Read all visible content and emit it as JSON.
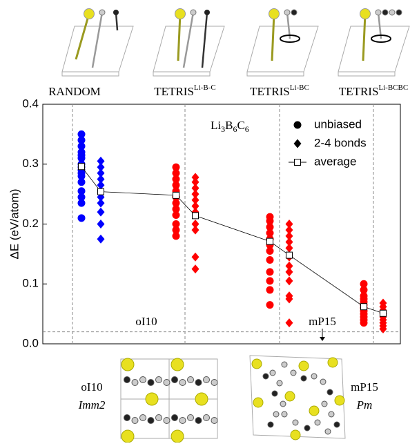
{
  "chart_data": {
    "type": "strip",
    "column_headers": [
      {
        "text": "RANDOM"
      },
      {
        "text": "TETRIS",
        "sup": "Li-B-C"
      },
      {
        "text": "TETRIS",
        "sup": "Li-BC"
      },
      {
        "text": "TETRIS",
        "sup": "Li-BCBC"
      }
    ],
    "compound": [
      "Li",
      "3",
      "B",
      "6",
      "C",
      "6"
    ],
    "ylabel": "ΔE (eV/atom)",
    "ylim": [
      0,
      0.4
    ],
    "yticks": [
      {
        "value": 0,
        "label": "0.0"
      },
      0.1,
      0.2,
      0.3,
      0.4
    ],
    "group_colors": [
      "#0000ff",
      "#ff0000",
      "#ff0000",
      "#ff0000"
    ],
    "series": [
      {
        "name": "unbiased",
        "marker": "circle",
        "color": "#000000",
        "values": [
          [
            0.35,
            0.34,
            0.33,
            0.32,
            0.315,
            0.31,
            0.3,
            0.295,
            0.29,
            0.285,
            0.28,
            0.27,
            0.255,
            0.245,
            0.235,
            0.21
          ],
          [
            0.295,
            0.285,
            0.275,
            0.265,
            0.255,
            0.245,
            0.235,
            0.225,
            0.215,
            0.2,
            0.19,
            0.18
          ],
          [
            0.212,
            0.205,
            0.195,
            0.185,
            0.175,
            0.165,
            0.155,
            0.14,
            0.12,
            0.105,
            0.09,
            0.065
          ],
          [
            0.1,
            0.09,
            0.08,
            0.075,
            0.07,
            0.065,
            0.06,
            0.055,
            0.05,
            0.045,
            0.04,
            0.035
          ]
        ]
      },
      {
        "name": "2-4 bonds",
        "marker": "diamond",
        "color": "#000000",
        "values": [
          [
            0.305,
            0.295,
            0.285,
            0.275,
            0.265,
            0.255,
            0.245,
            0.235,
            0.22,
            0.2,
            0.175
          ],
          [
            0.278,
            0.27,
            0.26,
            0.25,
            0.24,
            0.23,
            0.22,
            0.2,
            0.19,
            0.145,
            0.125
          ],
          [
            0.2,
            0.19,
            0.18,
            0.17,
            0.16,
            0.145,
            0.13,
            0.12,
            0.105,
            0.08,
            0.075,
            0.035
          ],
          [
            0.068,
            0.062,
            0.056,
            0.05,
            0.045,
            0.04,
            0.035,
            0.03,
            0.025
          ]
        ]
      },
      {
        "name": "average",
        "marker": "square",
        "color": "#000000",
        "values": [
          0.296,
          0.254,
          0.248,
          0.214,
          0.171,
          0.148,
          0.062,
          0.051
        ]
      }
    ],
    "reference_line": 0.02,
    "annotations": [
      "oI10",
      "mP15"
    ],
    "structures": [
      {
        "name": "oI10",
        "space_group": "Imm2"
      },
      {
        "name": "mP15",
        "space_group": "Pm"
      }
    ]
  }
}
